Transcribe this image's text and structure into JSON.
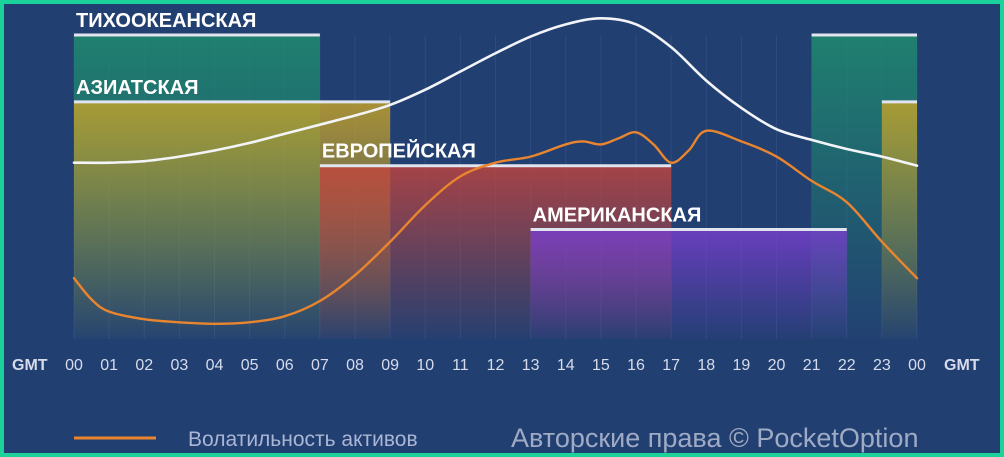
{
  "chart_data": {
    "type": "area",
    "x_axis_prefix": "GMT",
    "x_axis_suffix": "GMT",
    "hours": [
      "00",
      "01",
      "02",
      "03",
      "04",
      "05",
      "06",
      "07",
      "08",
      "09",
      "10",
      "11",
      "12",
      "13",
      "14",
      "15",
      "16",
      "17",
      "18",
      "19",
      "20",
      "21",
      "22",
      "23",
      "00"
    ],
    "sessions": [
      {
        "name": "ТИХООКЕАНСКАЯ",
        "ranges": [
          [
            0,
            7
          ],
          [
            21,
            24
          ]
        ],
        "level": 1,
        "color": "#1e8f6e"
      },
      {
        "name": "АЗИАТСКАЯ",
        "ranges": [
          [
            0,
            9
          ],
          [
            23,
            24
          ]
        ],
        "level": 0.78,
        "color": "#c8a428"
      },
      {
        "name": "ЕВРОПЕЙСКАЯ",
        "ranges": [
          [
            7,
            17
          ]
        ],
        "level": 0.57,
        "color": "#c4443c"
      },
      {
        "name": "АМЕРИКАНСКАЯ",
        "ranges": [
          [
            13,
            22
          ]
        ],
        "level": 0.36,
        "color": "#7a3ed0"
      }
    ],
    "series": [
      {
        "kind": "activity",
        "color": "#f2f4f8",
        "x": [
          0,
          1,
          2,
          3,
          4,
          5,
          6,
          7,
          8,
          9,
          10,
          11,
          12,
          13,
          14,
          15,
          16,
          17,
          18,
          19,
          20,
          21,
          22,
          23,
          24
        ],
        "y": [
          0.58,
          0.58,
          0.585,
          0.6,
          0.62,
          0.645,
          0.675,
          0.705,
          0.735,
          0.77,
          0.82,
          0.88,
          0.94,
          0.995,
          1.035,
          1.055,
          1.035,
          0.96,
          0.85,
          0.76,
          0.69,
          0.655,
          0.625,
          0.6,
          0.57
        ]
      },
      {
        "name": "Волатильность активов",
        "color": "#e8852e",
        "x": [
          0,
          0.5,
          1,
          2,
          3,
          4,
          5,
          6,
          7,
          8,
          9,
          10,
          11,
          12,
          13,
          14,
          14.5,
          15,
          15.5,
          16,
          16.5,
          17,
          17.5,
          18,
          19,
          20,
          21,
          22,
          23,
          24
        ],
        "y": [
          0.2,
          0.13,
          0.09,
          0.065,
          0.055,
          0.05,
          0.055,
          0.075,
          0.125,
          0.21,
          0.32,
          0.44,
          0.535,
          0.58,
          0.6,
          0.64,
          0.65,
          0.64,
          0.66,
          0.68,
          0.64,
          0.58,
          0.62,
          0.685,
          0.65,
          0.6,
          0.52,
          0.45,
          0.32,
          0.2
        ]
      }
    ]
  },
  "legend": {
    "label": "Волатильность активов"
  },
  "watermark": "Авторские права © PocketOption"
}
